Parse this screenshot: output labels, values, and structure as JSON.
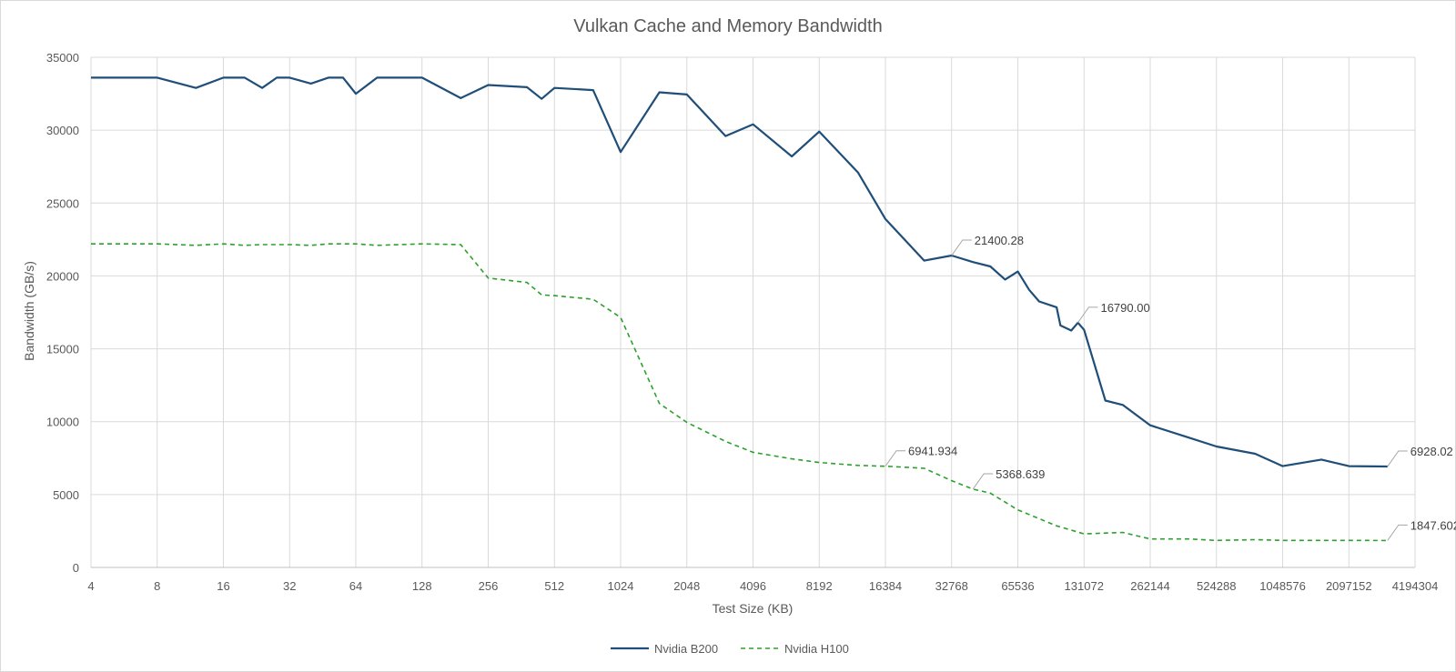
{
  "chart_data": {
    "type": "line",
    "title": "Vulkan Cache and Memory Bandwidth",
    "xlabel": "Test Size (KB)",
    "ylabel": "Bandwidth (GB/s)",
    "x_scale": "log2",
    "x_ticks": [
      "4",
      "8",
      "16",
      "32",
      "64",
      "128",
      "256",
      "512",
      "1024",
      "2048",
      "4096",
      "8192",
      "16384",
      "32768",
      "65536",
      "131072",
      "262144",
      "524288",
      "1048576",
      "2097152",
      "4194304"
    ],
    "ylim": [
      0,
      35000
    ],
    "y_ticks": [
      "0",
      "5000",
      "10000",
      "15000",
      "20000",
      "25000",
      "30000",
      "35000"
    ],
    "grid": true,
    "legend_position": "bottom",
    "series": [
      {
        "name": "Nvidia B200",
        "color": "#1f4e79",
        "dash": "solid",
        "points": [
          [
            4,
            33600
          ],
          [
            8,
            33600
          ],
          [
            12,
            32900
          ],
          [
            16,
            33600
          ],
          [
            20,
            33600
          ],
          [
            24,
            32900
          ],
          [
            28,
            33600
          ],
          [
            32,
            33600
          ],
          [
            40,
            33200
          ],
          [
            48,
            33600
          ],
          [
            56,
            33600
          ],
          [
            64,
            32500
          ],
          [
            80,
            33600
          ],
          [
            96,
            33600
          ],
          [
            128,
            33600
          ],
          [
            192,
            32200
          ],
          [
            256,
            33100
          ],
          [
            384,
            32950
          ],
          [
            448,
            32150
          ],
          [
            512,
            32900
          ],
          [
            768,
            32750
          ],
          [
            1024,
            28500
          ],
          [
            1536,
            32600
          ],
          [
            2048,
            32450
          ],
          [
            3072,
            29600
          ],
          [
            4096,
            30400
          ],
          [
            6144,
            28200
          ],
          [
            8192,
            29900
          ],
          [
            12288,
            27100
          ],
          [
            16384,
            23900
          ],
          [
            24576,
            21050
          ],
          [
            32768,
            21400.28
          ],
          [
            40960,
            20950
          ],
          [
            49152,
            20650
          ],
          [
            57344,
            19750
          ],
          [
            65536,
            20300
          ],
          [
            73728,
            19050
          ],
          [
            81920,
            18250
          ],
          [
            98304,
            17850
          ],
          [
            102400,
            16600
          ],
          [
            114688,
            16250
          ],
          [
            122880,
            16790.0
          ],
          [
            131072,
            16300
          ],
          [
            163840,
            11450
          ],
          [
            196608,
            11150
          ],
          [
            262144,
            9750
          ],
          [
            393216,
            8900
          ],
          [
            524288,
            8300
          ],
          [
            786432,
            7800
          ],
          [
            1048576,
            6950
          ],
          [
            1572864,
            7400
          ],
          [
            2097152,
            6950
          ],
          [
            3145728,
            6928.02
          ]
        ]
      },
      {
        "name": "Nvidia H100",
        "color": "#2ca02c",
        "dash": "dashed",
        "points": [
          [
            4,
            22200
          ],
          [
            8,
            22200
          ],
          [
            12,
            22100
          ],
          [
            16,
            22200
          ],
          [
            20,
            22100
          ],
          [
            24,
            22150
          ],
          [
            32,
            22150
          ],
          [
            40,
            22100
          ],
          [
            48,
            22200
          ],
          [
            64,
            22200
          ],
          [
            80,
            22100
          ],
          [
            128,
            22200
          ],
          [
            192,
            22150
          ],
          [
            256,
            19850
          ],
          [
            384,
            19550
          ],
          [
            448,
            18700
          ],
          [
            512,
            18650
          ],
          [
            768,
            18400
          ],
          [
            1024,
            17150
          ],
          [
            1536,
            11250
          ],
          [
            2048,
            9950
          ],
          [
            3072,
            8650
          ],
          [
            4096,
            7900
          ],
          [
            6144,
            7450
          ],
          [
            8192,
            7200
          ],
          [
            12288,
            7000
          ],
          [
            16384,
            6941.934
          ],
          [
            24576,
            6800
          ],
          [
            32768,
            5950
          ],
          [
            40960,
            5368.639
          ],
          [
            49152,
            5100
          ],
          [
            65536,
            3950
          ],
          [
            98304,
            2850
          ],
          [
            131072,
            2300
          ],
          [
            196608,
            2400
          ],
          [
            262144,
            1950
          ],
          [
            393216,
            1950
          ],
          [
            524288,
            1850
          ],
          [
            786432,
            1900
          ],
          [
            1048576,
            1850
          ],
          [
            2097152,
            1850
          ],
          [
            3145728,
            1847.602
          ]
        ]
      }
    ],
    "annotations": [
      {
        "series": 0,
        "x": 32768,
        "y": 21400.28,
        "text": "21400.28"
      },
      {
        "series": 0,
        "x": 122880,
        "y": 16790.0,
        "text": "16790.00"
      },
      {
        "series": 0,
        "x": 3145728,
        "y": 6928.02,
        "text": "6928.02"
      },
      {
        "series": 1,
        "x": 16384,
        "y": 6941.934,
        "text": "6941.934"
      },
      {
        "series": 1,
        "x": 40960,
        "y": 5368.639,
        "text": "5368.639"
      },
      {
        "series": 1,
        "x": 3145728,
        "y": 1847.602,
        "text": "1847.602"
      }
    ]
  }
}
